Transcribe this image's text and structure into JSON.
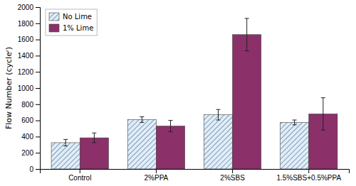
{
  "chart_data": {
    "type": "bar",
    "categories": [
      "Control",
      "2%PPA",
      "2%SBS",
      "1.5%SBS+0.5%PPA"
    ],
    "series": [
      {
        "name": "No Lime",
        "color": "#DDEEFF",
        "values": [
          325,
          610,
          670,
          575
        ],
        "errors": [
          40,
          35,
          65,
          30
        ]
      },
      {
        "name": "1% Lime",
        "color": "#8B3069",
        "values": [
          385,
          530,
          1660,
          680
        ],
        "errors": [
          60,
          70,
          200,
          200
        ]
      }
    ],
    "ylabel": "Flow Number (cycleʳ)",
    "ylim": [
      0,
      2000
    ],
    "yticks": [
      0,
      200,
      400,
      600,
      800,
      1000,
      1200,
      1400,
      1600,
      1800,
      2000
    ],
    "grid": false,
    "legend": "upper left"
  }
}
